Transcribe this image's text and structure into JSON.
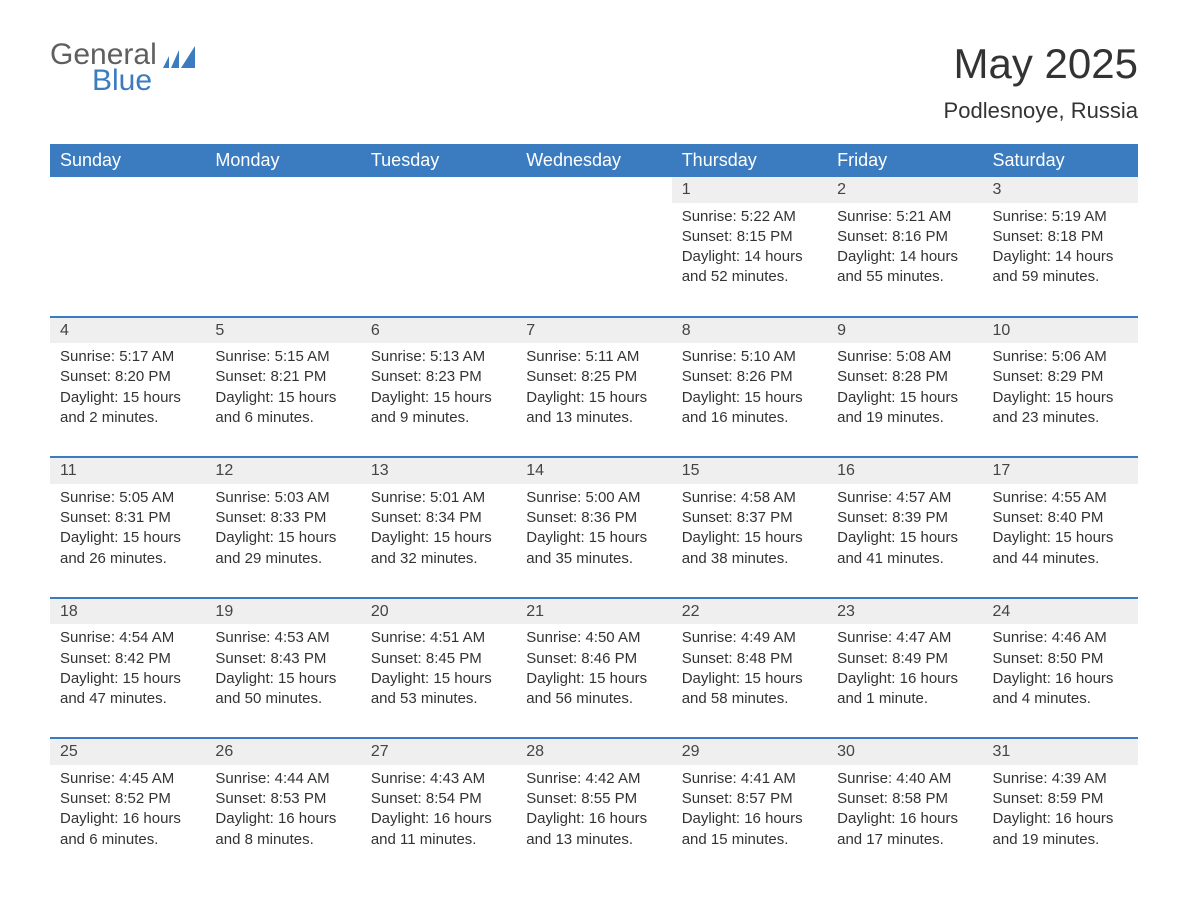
{
  "logo": {
    "word1": "General",
    "word2": "Blue"
  },
  "title": "May 2025",
  "location": "Podlesnoye, Russia",
  "colors": {
    "header_bg": "#3b7bbf",
    "header_text": "#ffffff",
    "daynum_bg": "#efefef",
    "row_border": "#3b7bbf",
    "body_text": "#333333",
    "page_bg": "#ffffff"
  },
  "dayHeaders": [
    "Sunday",
    "Monday",
    "Tuesday",
    "Wednesday",
    "Thursday",
    "Friday",
    "Saturday"
  ],
  "weeks": [
    [
      null,
      null,
      null,
      null,
      {
        "n": "1",
        "sunrise": "Sunrise: 5:22 AM",
        "sunset": "Sunset: 8:15 PM",
        "day1": "Daylight: 14 hours",
        "day2": "and 52 minutes."
      },
      {
        "n": "2",
        "sunrise": "Sunrise: 5:21 AM",
        "sunset": "Sunset: 8:16 PM",
        "day1": "Daylight: 14 hours",
        "day2": "and 55 minutes."
      },
      {
        "n": "3",
        "sunrise": "Sunrise: 5:19 AM",
        "sunset": "Sunset: 8:18 PM",
        "day1": "Daylight: 14 hours",
        "day2": "and 59 minutes."
      }
    ],
    [
      {
        "n": "4",
        "sunrise": "Sunrise: 5:17 AM",
        "sunset": "Sunset: 8:20 PM",
        "day1": "Daylight: 15 hours",
        "day2": "and 2 minutes."
      },
      {
        "n": "5",
        "sunrise": "Sunrise: 5:15 AM",
        "sunset": "Sunset: 8:21 PM",
        "day1": "Daylight: 15 hours",
        "day2": "and 6 minutes."
      },
      {
        "n": "6",
        "sunrise": "Sunrise: 5:13 AM",
        "sunset": "Sunset: 8:23 PM",
        "day1": "Daylight: 15 hours",
        "day2": "and 9 minutes."
      },
      {
        "n": "7",
        "sunrise": "Sunrise: 5:11 AM",
        "sunset": "Sunset: 8:25 PM",
        "day1": "Daylight: 15 hours",
        "day2": "and 13 minutes."
      },
      {
        "n": "8",
        "sunrise": "Sunrise: 5:10 AM",
        "sunset": "Sunset: 8:26 PM",
        "day1": "Daylight: 15 hours",
        "day2": "and 16 minutes."
      },
      {
        "n": "9",
        "sunrise": "Sunrise: 5:08 AM",
        "sunset": "Sunset: 8:28 PM",
        "day1": "Daylight: 15 hours",
        "day2": "and 19 minutes."
      },
      {
        "n": "10",
        "sunrise": "Sunrise: 5:06 AM",
        "sunset": "Sunset: 8:29 PM",
        "day1": "Daylight: 15 hours",
        "day2": "and 23 minutes."
      }
    ],
    [
      {
        "n": "11",
        "sunrise": "Sunrise: 5:05 AM",
        "sunset": "Sunset: 8:31 PM",
        "day1": "Daylight: 15 hours",
        "day2": "and 26 minutes."
      },
      {
        "n": "12",
        "sunrise": "Sunrise: 5:03 AM",
        "sunset": "Sunset: 8:33 PM",
        "day1": "Daylight: 15 hours",
        "day2": "and 29 minutes."
      },
      {
        "n": "13",
        "sunrise": "Sunrise: 5:01 AM",
        "sunset": "Sunset: 8:34 PM",
        "day1": "Daylight: 15 hours",
        "day2": "and 32 minutes."
      },
      {
        "n": "14",
        "sunrise": "Sunrise: 5:00 AM",
        "sunset": "Sunset: 8:36 PM",
        "day1": "Daylight: 15 hours",
        "day2": "and 35 minutes."
      },
      {
        "n": "15",
        "sunrise": "Sunrise: 4:58 AM",
        "sunset": "Sunset: 8:37 PM",
        "day1": "Daylight: 15 hours",
        "day2": "and 38 minutes."
      },
      {
        "n": "16",
        "sunrise": "Sunrise: 4:57 AM",
        "sunset": "Sunset: 8:39 PM",
        "day1": "Daylight: 15 hours",
        "day2": "and 41 minutes."
      },
      {
        "n": "17",
        "sunrise": "Sunrise: 4:55 AM",
        "sunset": "Sunset: 8:40 PM",
        "day1": "Daylight: 15 hours",
        "day2": "and 44 minutes."
      }
    ],
    [
      {
        "n": "18",
        "sunrise": "Sunrise: 4:54 AM",
        "sunset": "Sunset: 8:42 PM",
        "day1": "Daylight: 15 hours",
        "day2": "and 47 minutes."
      },
      {
        "n": "19",
        "sunrise": "Sunrise: 4:53 AM",
        "sunset": "Sunset: 8:43 PM",
        "day1": "Daylight: 15 hours",
        "day2": "and 50 minutes."
      },
      {
        "n": "20",
        "sunrise": "Sunrise: 4:51 AM",
        "sunset": "Sunset: 8:45 PM",
        "day1": "Daylight: 15 hours",
        "day2": "and 53 minutes."
      },
      {
        "n": "21",
        "sunrise": "Sunrise: 4:50 AM",
        "sunset": "Sunset: 8:46 PM",
        "day1": "Daylight: 15 hours",
        "day2": "and 56 minutes."
      },
      {
        "n": "22",
        "sunrise": "Sunrise: 4:49 AM",
        "sunset": "Sunset: 8:48 PM",
        "day1": "Daylight: 15 hours",
        "day2": "and 58 minutes."
      },
      {
        "n": "23",
        "sunrise": "Sunrise: 4:47 AM",
        "sunset": "Sunset: 8:49 PM",
        "day1": "Daylight: 16 hours",
        "day2": "and 1 minute."
      },
      {
        "n": "24",
        "sunrise": "Sunrise: 4:46 AM",
        "sunset": "Sunset: 8:50 PM",
        "day1": "Daylight: 16 hours",
        "day2": "and 4 minutes."
      }
    ],
    [
      {
        "n": "25",
        "sunrise": "Sunrise: 4:45 AM",
        "sunset": "Sunset: 8:52 PM",
        "day1": "Daylight: 16 hours",
        "day2": "and 6 minutes."
      },
      {
        "n": "26",
        "sunrise": "Sunrise: 4:44 AM",
        "sunset": "Sunset: 8:53 PM",
        "day1": "Daylight: 16 hours",
        "day2": "and 8 minutes."
      },
      {
        "n": "27",
        "sunrise": "Sunrise: 4:43 AM",
        "sunset": "Sunset: 8:54 PM",
        "day1": "Daylight: 16 hours",
        "day2": "and 11 minutes."
      },
      {
        "n": "28",
        "sunrise": "Sunrise: 4:42 AM",
        "sunset": "Sunset: 8:55 PM",
        "day1": "Daylight: 16 hours",
        "day2": "and 13 minutes."
      },
      {
        "n": "29",
        "sunrise": "Sunrise: 4:41 AM",
        "sunset": "Sunset: 8:57 PM",
        "day1": "Daylight: 16 hours",
        "day2": "and 15 minutes."
      },
      {
        "n": "30",
        "sunrise": "Sunrise: 4:40 AM",
        "sunset": "Sunset: 8:58 PM",
        "day1": "Daylight: 16 hours",
        "day2": "and 17 minutes."
      },
      {
        "n": "31",
        "sunrise": "Sunrise: 4:39 AM",
        "sunset": "Sunset: 8:59 PM",
        "day1": "Daylight: 16 hours",
        "day2": "and 19 minutes."
      }
    ]
  ]
}
